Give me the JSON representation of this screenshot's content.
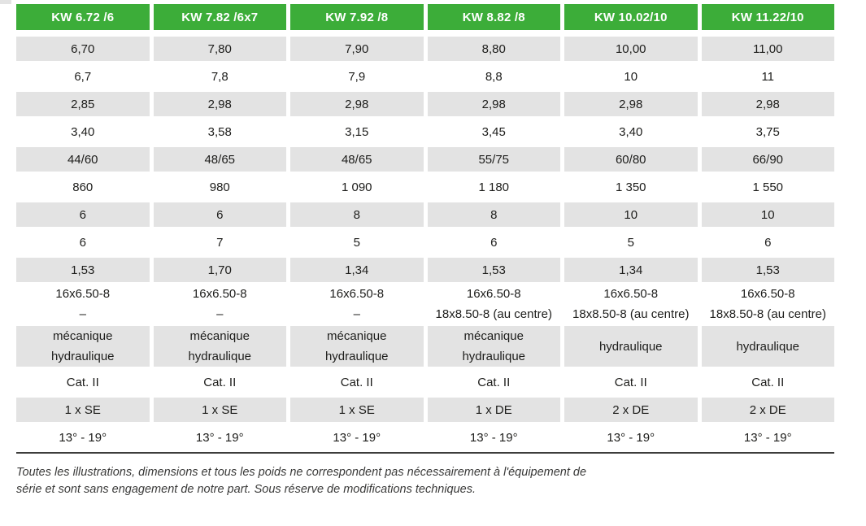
{
  "colors": {
    "header_green": "#3cad39",
    "header_text": "#ffffff",
    "row_gray": "#e3e3e3",
    "cell_text": "#1d1d1b",
    "bottom_rule": "#3d3d3c"
  },
  "table": {
    "columns": [
      "KW 6.72 /6",
      "KW 7.82 /6x7",
      "KW 7.92 /8",
      "KW 8.82 /8",
      "KW 10.02/10",
      "KW 11.22/10"
    ],
    "rows": [
      [
        "6,70",
        "7,80",
        "7,90",
        "8,80",
        "10,00",
        "11,00"
      ],
      [
        "6,7",
        "7,8",
        "7,9",
        "8,8",
        "10",
        "11"
      ],
      [
        "2,85",
        "2,98",
        "2,98",
        "2,98",
        "2,98",
        "2,98"
      ],
      [
        "3,40",
        "3,58",
        "3,15",
        "3,45",
        "3,40",
        "3,75"
      ],
      [
        "44/60",
        "48/65",
        "48/65",
        "55/75",
        "60/80",
        "66/90"
      ],
      [
        "860",
        "980",
        "1 090",
        "1 180",
        "1 350",
        "1 550"
      ],
      [
        "6",
        "6",
        "8",
        "8",
        "10",
        "10"
      ],
      [
        "6",
        "7",
        "5",
        "6",
        "5",
        "6"
      ],
      [
        "1,53",
        "1,70",
        "1,34",
        "1,53",
        "1,34",
        "1,53"
      ],
      [
        "16x6.50-8\n–",
        "16x6.50-8\n–",
        "16x6.50-8\n–",
        "16x6.50-8\n18x8.50-8 (au centre)",
        "16x6.50-8\n18x8.50-8 (au centre)",
        "16x6.50-8\n18x8.50-8 (au centre)"
      ],
      [
        "mécanique\nhydraulique",
        "mécanique\nhydraulique",
        "mécanique\nhydraulique",
        "mécanique\nhydraulique",
        "hydraulique",
        "hydraulique"
      ],
      [
        "Cat. II",
        "Cat. II",
        "Cat. II",
        "Cat. II",
        "Cat. II",
        "Cat. II"
      ],
      [
        "1 x SE",
        "1 x SE",
        "1 x SE",
        "1 x DE",
        "2 x DE",
        "2 x DE"
      ],
      [
        "13° - 19°",
        "13° - 19°",
        "13° - 19°",
        "13° - 19°",
        "13° - 19°",
        "13° - 19°"
      ]
    ]
  },
  "footnote": {
    "line1": "Toutes les illustrations, dimensions et tous les poids ne correspondent pas nécessairement à l'équipement de",
    "line2": "série et sont sans engagement de notre part. Sous réserve de modifications techniques."
  }
}
